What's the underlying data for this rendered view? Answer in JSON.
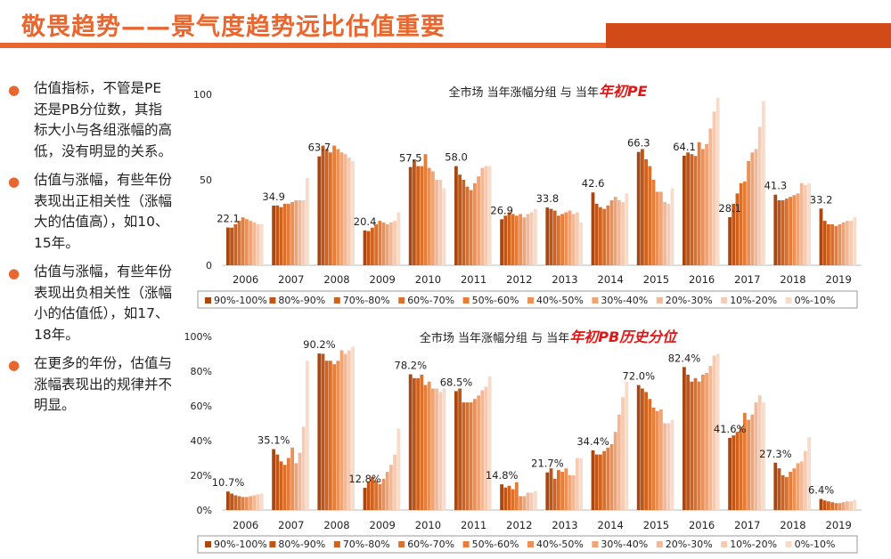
{
  "header": {
    "title": "敬畏趋势——景气度趋势远比估值重要"
  },
  "bullets": [
    {
      "marker": "●",
      "text": "估值指标，不管是PE还是PB分位数，其指标大小与各组涨幅的高低，没有明显的关系。"
    },
    {
      "marker": "●",
      "text": "估值与涨幅，有些年份表现出正相关性（涨幅大的估值高），如10、15年。"
    },
    {
      "marker": "●",
      "text": "估值与涨幅，有些年份表现出负相关性（涨幅小的估值低），如17、18年。"
    },
    {
      "marker": "●",
      "text": "在更多的年份，估值与涨幅表现出的规律并不明显。"
    }
  ],
  "colors": {
    "accent": "#e8662f",
    "accent_dark": "#d24a17",
    "title_red": "#e01818",
    "series": [
      "#a94712",
      "#bf5517",
      "#d0621f",
      "#dc6f2a",
      "#e67e3a",
      "#ec9057",
      "#f0a375",
      "#f3b898",
      "#f6cbb2",
      "#f8dccb"
    ]
  },
  "chart_data": [
    {
      "type": "bar",
      "title_prefix": "全市场  当年涨幅分组  与  当年",
      "title_emph": "年初PE",
      "ylim": [
        0,
        100
      ],
      "yticks": [
        "0",
        "50",
        "100"
      ],
      "ytick_values": [
        0,
        50,
        100
      ],
      "categories": [
        "2006",
        "2007",
        "2008",
        "2009",
        "2010",
        "2011",
        "2012",
        "2013",
        "2014",
        "2015",
        "2016",
        "2017",
        "2018",
        "2019"
      ],
      "labels": [
        "22.1",
        "34.9",
        "63.7",
        "20.4",
        "57.5",
        "58.0",
        "26.9",
        "33.8",
        "42.6",
        "66.3",
        "64.1",
        "28.1",
        "41.3",
        "33.2"
      ],
      "label_values": [
        22.1,
        34.9,
        63.7,
        20.4,
        57.5,
        58.0,
        26.9,
        33.8,
        42.6,
        66.3,
        64.1,
        28.1,
        41.3,
        33.2
      ],
      "series": [
        {
          "name": "90%-100%",
          "values": [
            22.1,
            34.9,
            63.7,
            20.4,
            57.5,
            58.0,
            26.9,
            33.8,
            42.6,
            66.3,
            64.1,
            28.1,
            41.3,
            33.2
          ]
        },
        {
          "name": "80%-90%",
          "values": [
            22,
            35,
            70,
            20,
            62,
            53,
            29,
            33,
            36,
            68,
            66,
            36,
            38,
            26
          ]
        },
        {
          "name": "70%-80%",
          "values": [
            24,
            34,
            68,
            22,
            58,
            50,
            31,
            32,
            34,
            62,
            65,
            42,
            38,
            24
          ]
        },
        {
          "name": "60%-70%",
          "values": [
            26,
            36,
            66,
            24,
            58,
            46,
            30,
            29,
            33,
            58,
            64,
            48,
            39,
            24
          ]
        },
        {
          "name": "50%-60%",
          "values": [
            28,
            36,
            70,
            26,
            65,
            44,
            29,
            30,
            35,
            50,
            72,
            49,
            40,
            23
          ]
        },
        {
          "name": "40%-50%",
          "values": [
            27,
            37,
            68,
            25,
            57,
            48,
            30,
            31,
            38,
            43,
            68,
            61,
            41,
            24
          ]
        },
        {
          "name": "30%-40%",
          "values": [
            26,
            38,
            66,
            24,
            55,
            52,
            28,
            32,
            40,
            43,
            71,
            66,
            42,
            25
          ]
        },
        {
          "name": "20%-30%",
          "values": [
            25,
            38,
            65,
            25,
            50,
            57,
            30,
            30,
            38,
            37,
            80,
            68,
            48,
            26
          ]
        },
        {
          "name": "10%-20%",
          "values": [
            24,
            38,
            63,
            26,
            50,
            58,
            31,
            31,
            37,
            36,
            90,
            81,
            47,
            26
          ]
        },
        {
          "name": "0%-10%",
          "values": [
            24,
            51,
            61,
            31,
            45,
            58,
            33,
            25,
            42,
            45,
            98,
            96,
            48,
            28
          ]
        }
      ]
    },
    {
      "type": "bar",
      "title_prefix": "全市场  当年涨幅分组  与  当年",
      "title_emph": "年初PB历史分位",
      "ylim": [
        0,
        100
      ],
      "yticks": [
        "0%",
        "20%",
        "40%",
        "60%",
        "80%",
        "100%"
      ],
      "ytick_values": [
        0,
        20,
        40,
        60,
        80,
        100
      ],
      "categories": [
        "2006",
        "2007",
        "2008",
        "2009",
        "2010",
        "2011",
        "2012",
        "2013",
        "2014",
        "2015",
        "2016",
        "2017",
        "2018",
        "2019"
      ],
      "labels": [
        "10.7%",
        "35.1%",
        "90.2%",
        "12.8%",
        "78.2%",
        "68.5%",
        "14.8%",
        "21.7%",
        "34.4%",
        "72.0%",
        "82.4%",
        "41.6%",
        "27.3%",
        "6.4%"
      ],
      "label_values": [
        10.7,
        35.1,
        90.2,
        12.8,
        78.2,
        68.5,
        14.8,
        21.7,
        34.4,
        72.0,
        82.4,
        41.6,
        27.3,
        6.4
      ],
      "series": [
        {
          "name": "90%-100%",
          "values": [
            10.7,
            35.1,
            90.2,
            12.8,
            78.2,
            68.5,
            14.8,
            21.7,
            34.4,
            72.0,
            82.4,
            41.6,
            27.3,
            6.4
          ]
        },
        {
          "name": "80%-90%",
          "values": [
            9.5,
            32,
            90,
            16,
            76,
            70,
            13,
            24,
            32,
            70,
            78,
            43,
            24,
            5.5
          ]
        },
        {
          "name": "70%-80%",
          "values": [
            8.5,
            28,
            86,
            19,
            76,
            62,
            14,
            18,
            32,
            68,
            74,
            45,
            20,
            5
          ]
        },
        {
          "name": "60%-70%",
          "values": [
            8,
            26,
            86,
            17,
            78,
            62,
            12,
            23,
            34,
            64,
            76,
            48,
            19,
            4.5
          ]
        },
        {
          "name": "50%-60%",
          "values": [
            7.5,
            30,
            84,
            15,
            72,
            62,
            16,
            22,
            36,
            59,
            74,
            56,
            22,
            4
          ]
        },
        {
          "name": "40%-50%",
          "values": [
            7.5,
            36,
            86,
            18,
            74,
            64,
            8,
            24,
            38,
            57,
            78,
            52,
            24,
            4
          ]
        },
        {
          "name": "30%-40%",
          "values": [
            8,
            27,
            92,
            22,
            70,
            66,
            8,
            20,
            45,
            58,
            79,
            55,
            27,
            4.5
          ]
        },
        {
          "name": "20%-30%",
          "values": [
            8.5,
            33,
            90,
            26,
            70,
            69,
            10,
            20,
            55,
            50,
            83,
            62,
            28,
            5
          ]
        },
        {
          "name": "10%-20%",
          "values": [
            9,
            48,
            92,
            32,
            68,
            71,
            10,
            30,
            65,
            50,
            89,
            66,
            34,
            5
          ]
        },
        {
          "name": "0%-10%",
          "values": [
            9.5,
            86,
            94,
            47,
            70,
            77,
            11,
            30,
            74,
            52,
            90,
            62,
            42,
            6
          ]
        }
      ]
    }
  ]
}
